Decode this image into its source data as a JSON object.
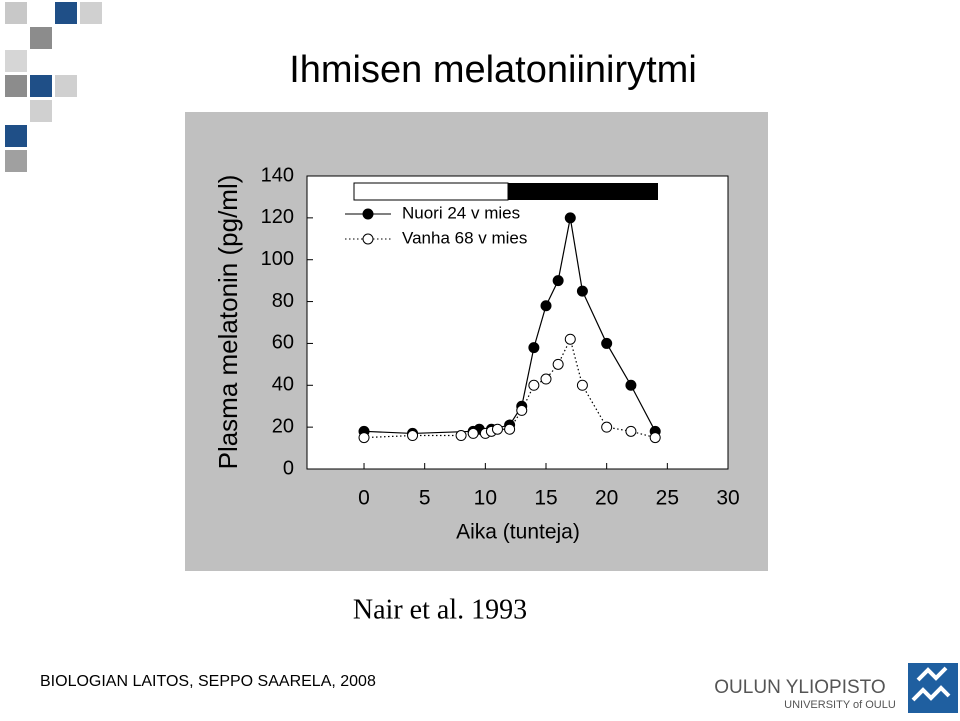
{
  "slide": {
    "title": "Ihmisen melatoniinirytmi",
    "citation": "Nair et al. 1993",
    "footer": "BIOLOGIAN LAITOS, SEPPO SAARELA, 2008",
    "logo_name": "OULUN YLIOPISTO",
    "logo_sub": "UNIVERSITY of OULU"
  },
  "chart_data": {
    "type": "line",
    "ylabel": "Plasma melatonin (pg/ml)",
    "xlabel": "Aika (tunteja)",
    "xlim": [
      -4.7,
      30
    ],
    "xticks": [
      0,
      5,
      10,
      15,
      20,
      25,
      30
    ],
    "ylim": [
      0,
      140
    ],
    "yticks": [
      0,
      20,
      40,
      60,
      80,
      100,
      120,
      140
    ],
    "grid": false,
    "legend": "top-left",
    "series": [
      {
        "name": "Nuori 24 v mies",
        "color": "#000000",
        "marker_fill": "#000000",
        "dash": "solid",
        "x": [
          0,
          4,
          9,
          9.5,
          10.5,
          12,
          13,
          14,
          15,
          16,
          17,
          18,
          20,
          22,
          24
        ],
        "values": [
          18,
          17,
          18,
          19,
          19,
          21,
          30,
          58,
          78,
          90,
          120,
          85,
          60,
          40,
          18
        ]
      },
      {
        "name": "Vanha 68 v mies",
        "color": "#000000",
        "marker_fill": "#ffffff",
        "dash": "dotted",
        "x": [
          0,
          4,
          8,
          9,
          10,
          10.5,
          11,
          12,
          13,
          14,
          15,
          16,
          17,
          18,
          20,
          22,
          24
        ],
        "values": [
          15,
          16,
          16,
          17,
          17,
          18,
          19,
          19,
          28,
          40,
          43,
          50,
          62,
          40,
          20,
          18,
          15
        ]
      }
    ]
  }
}
